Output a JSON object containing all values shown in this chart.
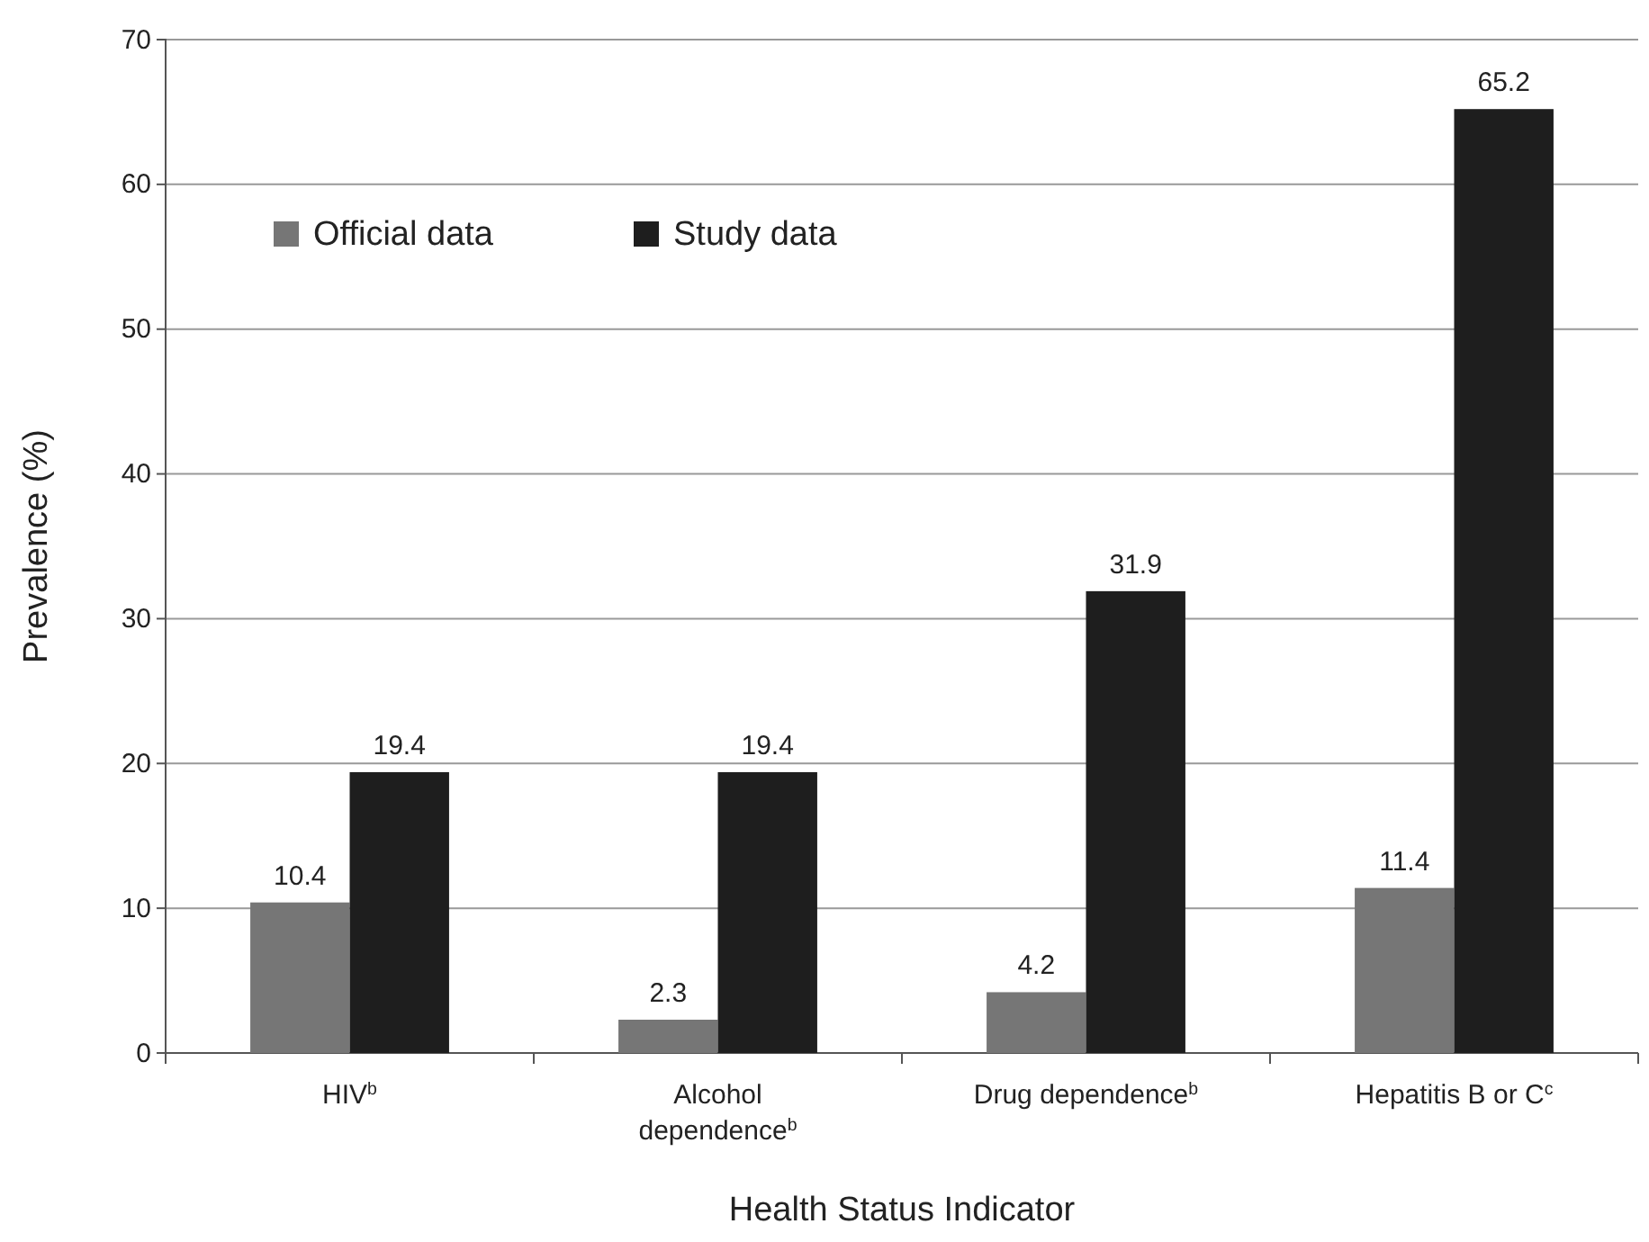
{
  "chart_data": {
    "type": "bar",
    "xlabel": "Health Status Indicator",
    "ylabel": "Prevalence (%)",
    "categories": [
      "HIV$^{b}$",
      "Alcohol dependence$^{b}$",
      "Drug dependence$^{b}$",
      "Hepatitis B or C$^{c}$"
    ],
    "series": [
      {
        "name": "Official data",
        "color": "#767676",
        "values": [
          10.4,
          2.3,
          4.2,
          11.4
        ]
      },
      {
        "name": "Study data",
        "color": "#1e1e1e",
        "values": [
          19.4,
          19.4,
          31.9,
          65.2
        ]
      }
    ],
    "ylim": [
      0,
      70
    ],
    "yticks": [
      0,
      10,
      20,
      30,
      40,
      50,
      60,
      70
    ],
    "grid": "y",
    "legend": "top left",
    "data_labels": true
  }
}
